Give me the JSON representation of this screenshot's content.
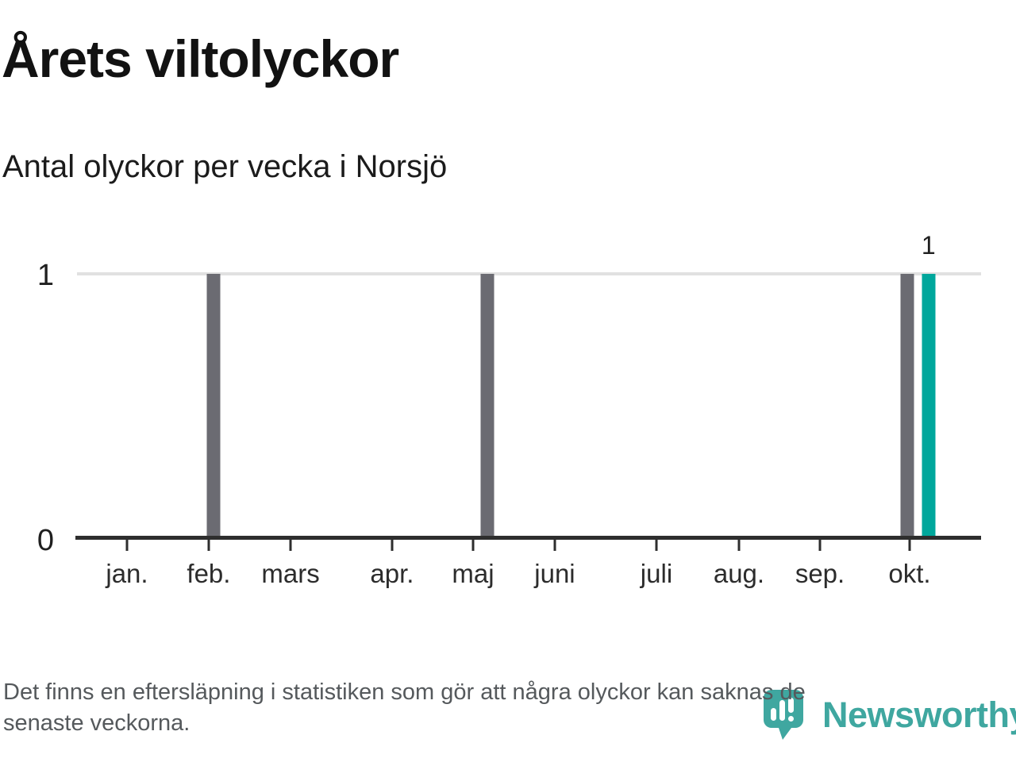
{
  "page": {
    "title": "Årets viltolyckor",
    "subtitle": "Antal olyckor per vecka i Norsjö",
    "footer_lines": [
      "Det finns en eftersläpning i statistiken som gör att några olyckor kan saknas de",
      "senaste veckorna."
    ],
    "brand": {
      "name": "Newsworthy",
      "color": "#3fa7a0"
    }
  },
  "chart_data": {
    "type": "bar",
    "title": "Årets viltolyckor",
    "subtitle": "Antal olyckor per vecka i Norsjö",
    "xlabel": "",
    "ylabel": "",
    "x_unit": "vecka",
    "n_weeks": 43,
    "values": [
      0,
      0,
      0,
      0,
      0,
      0,
      1,
      0,
      0,
      0,
      0,
      0,
      0,
      0,
      0,
      0,
      0,
      0,
      0,
      1,
      0,
      0,
      0,
      0,
      0,
      0,
      0,
      0,
      0,
      0,
      0,
      0,
      0,
      0,
      0,
      0,
      0,
      0,
      0,
      1,
      1,
      0,
      0
    ],
    "highlight_index": 40,
    "highlight_value_label": "1",
    "ylim": [
      0,
      1
    ],
    "yticks": [
      "1",
      "0"
    ],
    "grid": "single horizontal gridline at y=1",
    "legend": "none",
    "month_ticks": [
      {
        "label": "jan.",
        "pos": 0.0553
      },
      {
        "label": "feb.",
        "pos": 0.1457
      },
      {
        "label": "mars",
        "pos": 0.2362
      },
      {
        "label": "apr.",
        "pos": 0.3485
      },
      {
        "label": "maj",
        "pos": 0.4381
      },
      {
        "label": "juni",
        "pos": 0.5285
      },
      {
        "label": "juli",
        "pos": 0.6409
      },
      {
        "label": "aug.",
        "pos": 0.7322
      },
      {
        "label": "sep.",
        "pos": 0.8218
      },
      {
        "label": "okt.",
        "pos": 0.921
      }
    ],
    "colors": {
      "bar": "#6b6b72",
      "highlight": "#00a79c",
      "gridline": "#e1e1e1",
      "axis": "#2e2e2e"
    }
  }
}
